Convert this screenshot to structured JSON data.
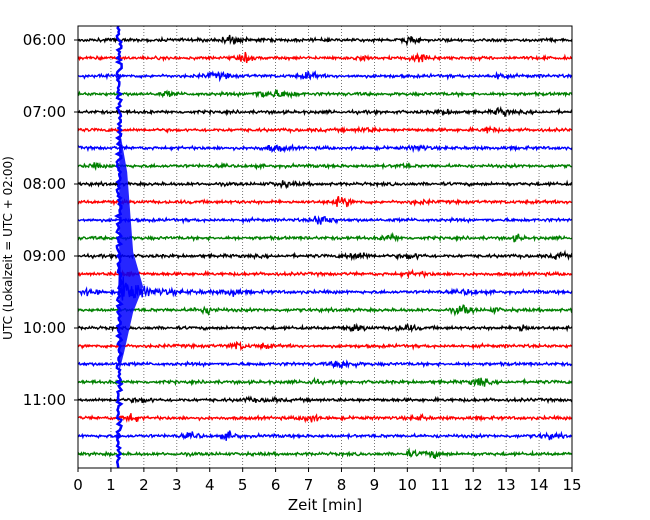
{
  "chart_data": {
    "type": "line",
    "title": "",
    "xlabel": "Zeit  [min]",
    "ylabel": "UTC (Lokalzeit = UTC + 02:00)",
    "xlim": [
      0,
      15
    ],
    "x_ticks": [
      0,
      1,
      2,
      3,
      4,
      5,
      6,
      7,
      8,
      9,
      10,
      11,
      12,
      13,
      14,
      15
    ],
    "y_ticks": [
      "06:00",
      "07:00",
      "08:00",
      "09:00",
      "10:00",
      "11:00"
    ],
    "trace_start_time": "06:00",
    "trace_interval_min": 15,
    "trace_count": 24,
    "trace_colors": [
      "#000000",
      "#ff0000",
      "#0000ff",
      "#008000"
    ],
    "grid": "vertical dotted",
    "event": {
      "x_min": 1.25,
      "coda_end_min": 4.8,
      "start_trace": "09:30"
    }
  }
}
